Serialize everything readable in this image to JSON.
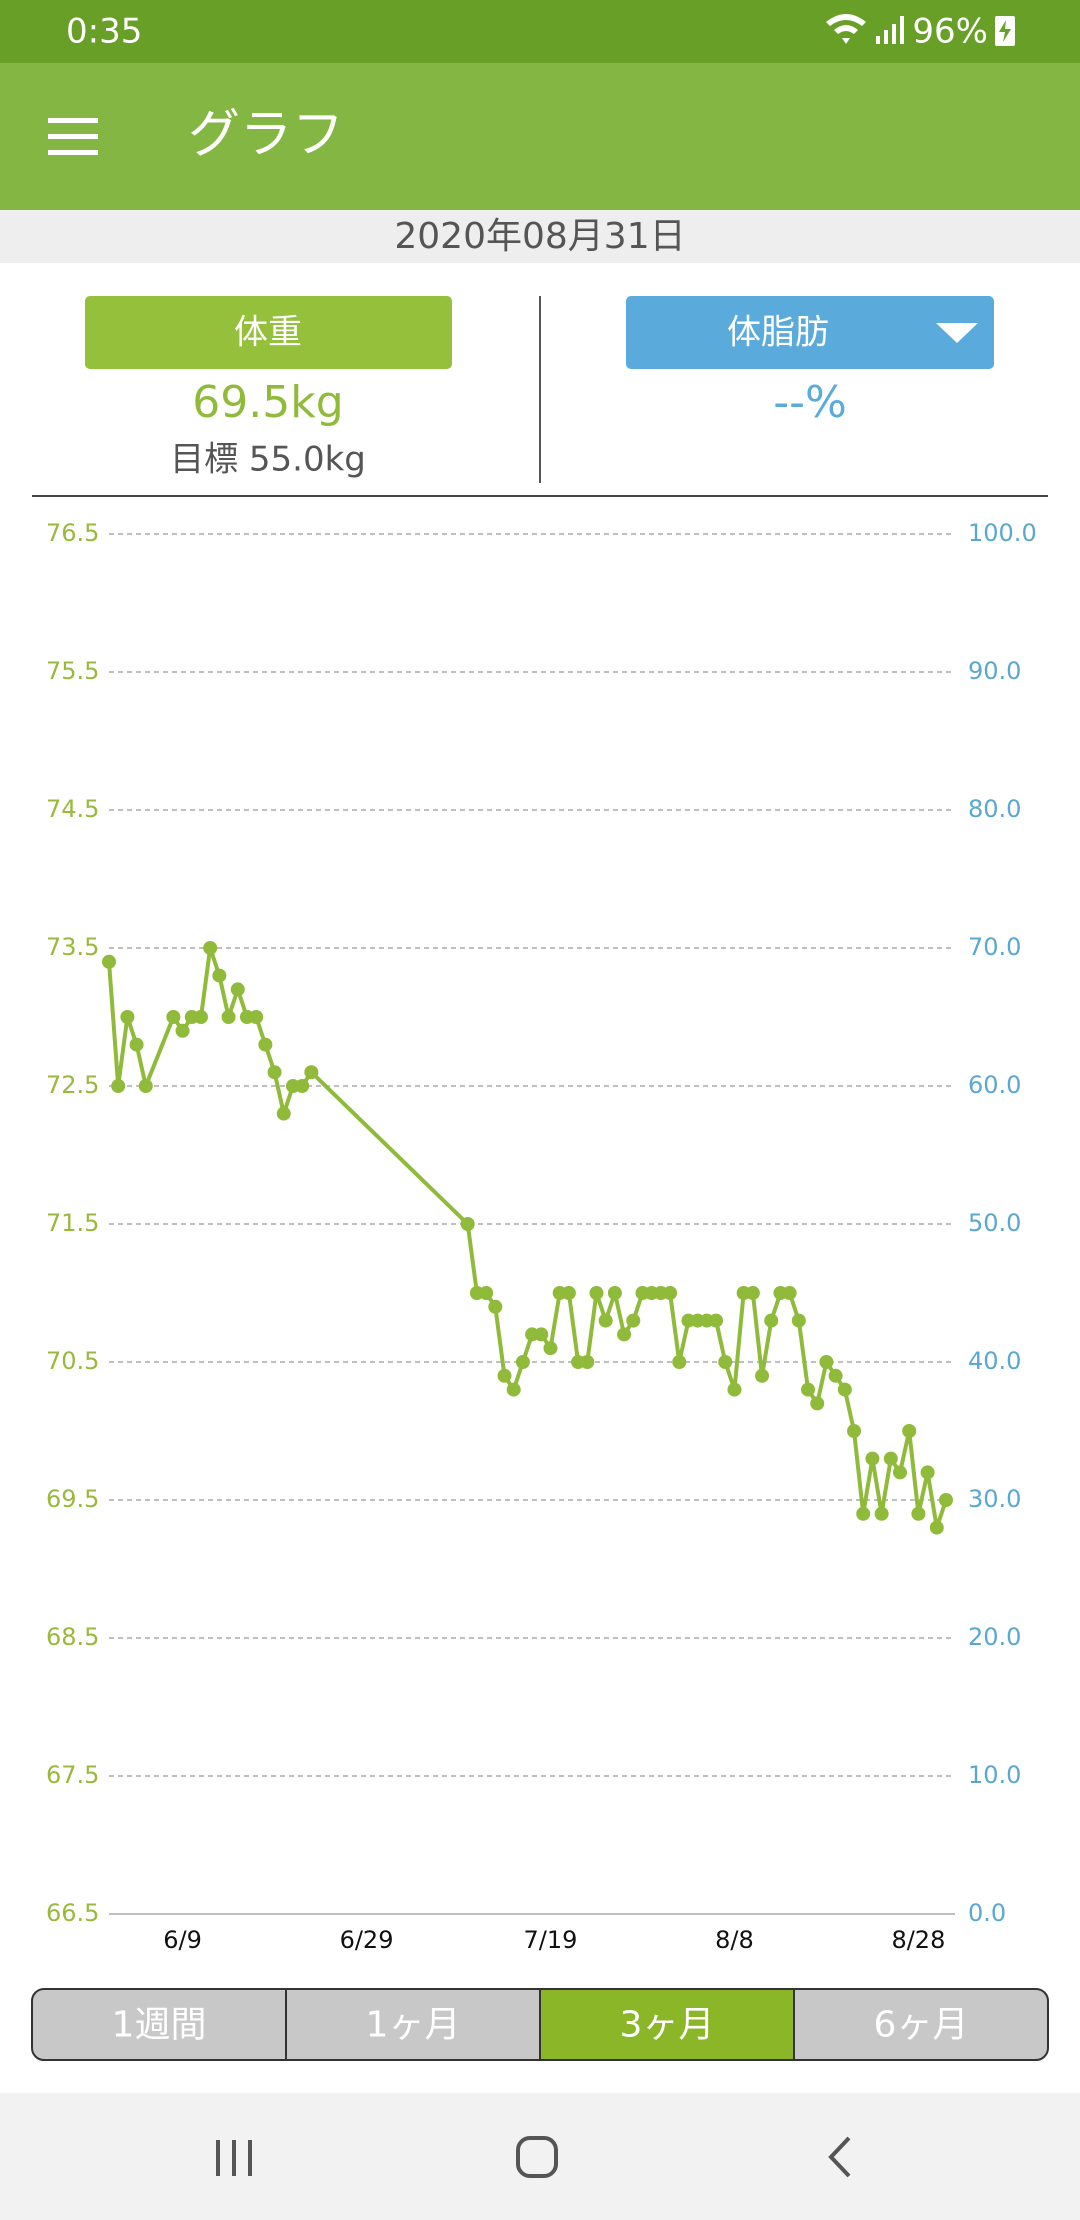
{
  "status_bar": {
    "time": "0:35",
    "battery": "96%"
  },
  "app_bar": {
    "title": "グラフ"
  },
  "date": "2020年08月31日",
  "summary": {
    "weight": {
      "label": "体重",
      "value": "69.5kg",
      "goal": "目標 55.0kg"
    },
    "body_fat": {
      "label": "体脂肪",
      "value": "--%"
    }
  },
  "chart_data": {
    "type": "line",
    "color": "#8fba3a",
    "x": [
      "6/1",
      "6/2",
      "6/3",
      "6/4",
      "6/5",
      "6/8",
      "6/9",
      "6/10",
      "6/11",
      "6/12",
      "6/13",
      "6/14",
      "6/15",
      "6/16",
      "6/17",
      "6/18",
      "6/19",
      "6/20",
      "6/21",
      "6/22",
      "6/23",
      "7/10",
      "7/11",
      "7/12",
      "7/13",
      "7/14",
      "7/15",
      "7/16",
      "7/17",
      "7/18",
      "7/19",
      "7/20",
      "7/21",
      "7/22",
      "7/23",
      "7/24",
      "7/25",
      "7/26",
      "7/27",
      "7/28",
      "7/29",
      "7/30",
      "7/31",
      "8/1",
      "8/2",
      "8/3",
      "8/4",
      "8/5",
      "8/6",
      "8/7",
      "8/8",
      "8/9",
      "8/10",
      "8/11",
      "8/12",
      "8/13",
      "8/14",
      "8/15",
      "8/16",
      "8/17",
      "8/18",
      "8/19",
      "8/20",
      "8/21",
      "8/22",
      "8/23",
      "8/24",
      "8/25",
      "8/26",
      "8/27",
      "8/28",
      "8/29",
      "8/30",
      "8/31"
    ],
    "values": [
      73.4,
      72.5,
      73.0,
      72.8,
      72.5,
      73.0,
      72.9,
      73.0,
      73.0,
      73.5,
      73.3,
      73.0,
      73.2,
      73.0,
      73.0,
      72.8,
      72.6,
      72.3,
      72.5,
      72.5,
      72.6,
      71.5,
      71.0,
      71.0,
      70.9,
      70.4,
      70.3,
      70.5,
      70.7,
      70.7,
      70.6,
      71.0,
      71.0,
      70.5,
      70.5,
      71.0,
      70.8,
      71.0,
      70.7,
      70.8,
      71.0,
      71.0,
      71.0,
      71.0,
      70.5,
      70.8,
      70.8,
      70.8,
      70.8,
      70.5,
      70.3,
      71.0,
      71.0,
      70.4,
      70.8,
      71.0,
      71.0,
      70.8,
      70.3,
      70.2,
      70.5,
      70.4,
      70.3,
      70.0,
      69.4,
      69.8,
      69.4,
      69.8,
      69.7,
      70.0,
      69.4,
      69.7,
      69.3,
      69.5
    ],
    "xlim": [
      "6/1",
      "8/31"
    ],
    "xticks": [
      "6/9",
      "6/29",
      "7/19",
      "8/8",
      "8/28"
    ],
    "ylim": [
      66.5,
      76.5
    ],
    "yticks": [
      66.5,
      67.5,
      68.5,
      69.5,
      70.5,
      71.5,
      72.5,
      73.5,
      74.5,
      75.5,
      76.5
    ],
    "y2lim": [
      0,
      100
    ],
    "y2ticks": [
      {
        "value": 0,
        "label": "0.0"
      },
      {
        "value": 10,
        "label": "10.0"
      },
      {
        "value": 20,
        "label": "20.0"
      },
      {
        "value": 30,
        "label": "30.0"
      },
      {
        "value": 40,
        "label": "40.0"
      },
      {
        "value": 50,
        "label": "50.0"
      },
      {
        "value": 60,
        "label": "60.0"
      },
      {
        "value": 70,
        "label": "70.0"
      },
      {
        "value": 80,
        "label": "80.0"
      },
      {
        "value": 90,
        "label": "90.0"
      },
      {
        "value": 100,
        "label": "100.0"
      }
    ],
    "grid": true
  },
  "tabs": [
    "1週間",
    "1ヶ月",
    "3ヶ月",
    "6ヶ月"
  ],
  "selected_tab": 2
}
